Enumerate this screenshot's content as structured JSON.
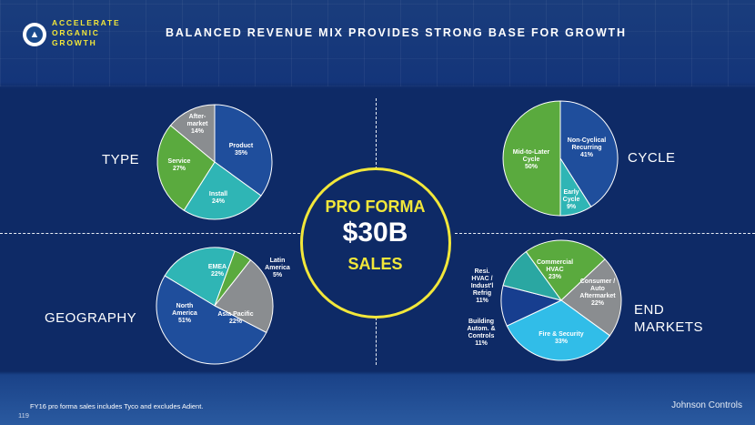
{
  "header": {
    "brand_lines": [
      "ACCELERATE",
      "ORGANIC",
      "GROWTH"
    ],
    "title": "BALANCED REVENUE MIX PROVIDES STRONG BASE FOR GROWTH",
    "logo_icon": "growth-chart-icon"
  },
  "labels": {
    "type": "TYPE",
    "cycle": "CYCLE",
    "geography": "GEOGRAPHY",
    "end_markets_line1": "END",
    "end_markets_line2": "MARKETS"
  },
  "center": {
    "line1": "PRO FORMA",
    "line2": "$30B",
    "line3": "SALES"
  },
  "footer": {
    "footnote": "FY16 pro forma sales includes Tyco and excludes Adient.",
    "page_number": "119",
    "company": "Johnson Controls"
  },
  "colors": {
    "accent_yellow": "#f2e73a",
    "blue": "#1f4e9c",
    "teal": "#2fb5b5",
    "green": "#5aaa3e",
    "gray": "#8a8d90",
    "cyan": "#31bde8",
    "dark_blue": "#173e8f"
  },
  "chart_data": [
    {
      "type": "pie",
      "id": "type",
      "title": "TYPE",
      "slices": [
        {
          "label": [
            "Product",
            "35%"
          ],
          "value": 35,
          "color": "#1f4e9c"
        },
        {
          "label": [
            "Install",
            "24%"
          ],
          "value": 24,
          "color": "#2fb5b5"
        },
        {
          "label": [
            "Service",
            "27%"
          ],
          "value": 27,
          "color": "#5aaa3e"
        },
        {
          "label": [
            "After-",
            "market",
            "14%"
          ],
          "value": 14,
          "color": "#8a8d90"
        }
      ]
    },
    {
      "type": "pie",
      "id": "cycle",
      "title": "CYCLE",
      "slices": [
        {
          "label": [
            "Non-Cyclical",
            "Recurring",
            "41%"
          ],
          "value": 41,
          "color": "#1f4e9c"
        },
        {
          "label": [
            "Early",
            "Cycle",
            "9%"
          ],
          "value": 9,
          "color": "#2fb5b5"
        },
        {
          "label": [
            "Mid-to-Later",
            "Cycle",
            "50%"
          ],
          "value": 50,
          "color": "#5aaa3e"
        }
      ]
    },
    {
      "type": "pie",
      "id": "geography",
      "title": "GEOGRAPHY",
      "slices": [
        {
          "label": [
            "EMEA",
            "22%"
          ],
          "value": 22,
          "color": "#2fb5b5"
        },
        {
          "label": [
            "Latin",
            "America",
            "5%"
          ],
          "value": 5,
          "color": "#5aaa3e"
        },
        {
          "label": [
            "Asia Pacific",
            "22%"
          ],
          "value": 22,
          "color": "#8a8d90"
        },
        {
          "label": [
            "North",
            "America",
            "51%"
          ],
          "value": 51,
          "color": "#1f4e9c"
        }
      ]
    },
    {
      "type": "pie",
      "id": "end_markets",
      "title": "END MARKETS",
      "slices": [
        {
          "label": [
            "Commercial",
            "HVAC",
            "23%"
          ],
          "value": 23,
          "color": "#5aaa3e"
        },
        {
          "label": [
            "Consumer /",
            "Auto",
            "Aftermarket",
            "22%"
          ],
          "value": 22,
          "color": "#8a8d90"
        },
        {
          "label": [
            "Fire & Security",
            "33%"
          ],
          "value": 33,
          "color": "#31bde8"
        },
        {
          "label": [
            "Building",
            "Autom. &",
            "Controls",
            "11%"
          ],
          "value": 11,
          "color": "#173e8f"
        },
        {
          "label": [
            "Resi.",
            "HVAC /",
            "Indust'l",
            "Refrig",
            "11%"
          ],
          "value": 11,
          "color": "#2aa7a2"
        }
      ]
    }
  ]
}
